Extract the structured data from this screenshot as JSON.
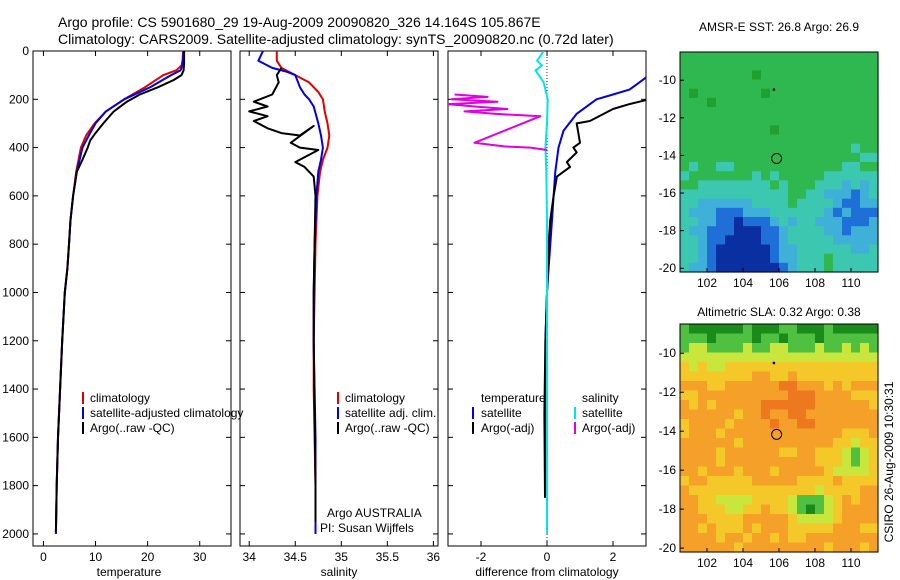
{
  "header": {
    "line1": "Argo profile: CS 5901680_29 19-Aug-2009 20090820_326 14.164S 105.867E",
    "line2": "Climatology: CARS2009. Satellite-adjusted climatology: synTS_20090820.nc (0.72d later)"
  },
  "side_label": "CSIRO 26-Aug-2009 10:30:31",
  "colors": {
    "red": "#e00000",
    "blue": "#0000e0",
    "black": "#000000",
    "cyan": "#00e5e5",
    "magenta": "#e000e0"
  },
  "chart_data": [
    {
      "id": "temperature",
      "type": "line",
      "xlabel": "temperature",
      "xlim": [
        -2,
        36
      ],
      "ylim": [
        0,
        2050
      ],
      "xticks": [
        0,
        10,
        20,
        30
      ],
      "yticks": [
        0,
        200,
        400,
        600,
        800,
        1000,
        1200,
        1400,
        1600,
        1800,
        2000
      ],
      "legend": [
        "climatology",
        "satellite-adjusted climatology",
        "Argo(..raw -QC)"
      ],
      "series": [
        {
          "name": "climatology",
          "color": "#e00000",
          "x": [
            26.8,
            26.7,
            26.5,
            25.5,
            23,
            19.5,
            15.5,
            12,
            9.8,
            8.2,
            7.2,
            6.3,
            5.7,
            5.2,
            4.9,
            4.6,
            4.1,
            3.6,
            3.2,
            2.8,
            2.55,
            2.4
          ],
          "y": [
            0,
            40,
            60,
            80,
            100,
            150,
            200,
            250,
            300,
            350,
            400,
            500,
            600,
            700,
            800,
            900,
            1000,
            1200,
            1400,
            1600,
            1800,
            2000
          ]
        },
        {
          "name": "satellite-adjusted climatology",
          "color": "#0000e0",
          "x": [
            26.9,
            26.8,
            26.7,
            26.3,
            24.5,
            20.5,
            15.5,
            12,
            10,
            8.7,
            7.5,
            6.4,
            5.7,
            5.2,
            4.9,
            4.6,
            4.1,
            3.6,
            3.2,
            2.8,
            2.55,
            2.4
          ],
          "y": [
            0,
            40,
            60,
            80,
            100,
            150,
            200,
            250,
            300,
            350,
            400,
            500,
            600,
            700,
            800,
            900,
            1000,
            1200,
            1400,
            1600,
            1800,
            2000
          ]
        },
        {
          "name": "Argo(..raw -QC)",
          "color": "#000000",
          "x": [
            27,
            27,
            26.9,
            26.5,
            25,
            22,
            18.5,
            16,
            13.5,
            11.5,
            10,
            9,
            8.5,
            7.5,
            6.4,
            5.7,
            5.2,
            4.9,
            4.6,
            4.1,
            3.6,
            3.2,
            2.8,
            2.55,
            2.4
          ],
          "y": [
            0,
            50,
            80,
            100,
            120,
            150,
            180,
            210,
            250,
            300,
            340,
            370,
            400,
            450,
            500,
            600,
            700,
            800,
            900,
            1000,
            1200,
            1400,
            1600,
            1800,
            1990
          ]
        }
      ]
    },
    {
      "id": "salinity",
      "type": "line",
      "xlabel": "salinity",
      "xlim": [
        33.9,
        36.05
      ],
      "ylim": [
        0,
        2050
      ],
      "xticks": [
        34,
        34.5,
        35,
        35.5,
        36
      ],
      "legend": [
        "climatology",
        "satellite adj. clim.",
        "Argo(..raw -QC)"
      ],
      "annotation": [
        "Argo AUSTRALIA",
        "PI: Susan Wijffels"
      ],
      "series": [
        {
          "name": "climatology",
          "color": "#e00000",
          "x": [
            34.3,
            34.3,
            34.35,
            34.5,
            34.65,
            34.75,
            34.8,
            34.82,
            34.85,
            34.87,
            34.85,
            34.8,
            34.77,
            34.74,
            34.72,
            34.71,
            34.7,
            34.7,
            34.71,
            34.72,
            34.72,
            34.72
          ],
          "y": [
            0,
            40,
            70,
            100,
            130,
            170,
            200,
            250,
            300,
            350,
            400,
            450,
            500,
            600,
            800,
            1000,
            1200,
            1400,
            1600,
            1800,
            1900,
            2000
          ]
        },
        {
          "name": "satellite adj. clim.",
          "color": "#0000e0",
          "x": [
            34.15,
            34.1,
            34.25,
            34.4,
            34.5,
            34.55,
            34.6,
            34.65,
            34.7,
            34.75,
            34.78,
            34.8,
            34.78,
            34.75,
            34.73,
            34.71,
            34.7,
            34.7,
            34.71,
            34.72,
            34.72,
            34.72
          ],
          "y": [
            0,
            40,
            70,
            85,
            100,
            150,
            180,
            200,
            230,
            300,
            350,
            400,
            450,
            500,
            600,
            800,
            1000,
            1200,
            1400,
            1600,
            1800,
            2000
          ]
        },
        {
          "name": "Argo(..raw -QC)",
          "color": "#000000",
          "x": [
            34.35,
            34.3,
            34.32,
            34.25,
            34.05,
            34.2,
            34.0,
            34.2,
            34.05,
            34.2,
            34.35,
            34.55,
            34.7,
            34.45,
            34.55,
            34.75,
            34.6,
            34.5,
            34.6,
            34.7,
            34.72,
            34.71,
            34.7,
            34.7,
            34.71,
            34.72,
            34.72
          ],
          "y": [
            70,
            100,
            130,
            180,
            210,
            230,
            250,
            270,
            290,
            320,
            340,
            350,
            310,
            380,
            400,
            410,
            440,
            460,
            480,
            520,
            600,
            800,
            1000,
            1200,
            1500,
            1800,
            1950
          ]
        }
      ]
    },
    {
      "id": "difference",
      "type": "line",
      "xlabel": "difference from climatology",
      "xlim": [
        -3,
        3
      ],
      "ylim": [
        0,
        2050
      ],
      "xticks": [
        -2,
        0,
        2
      ],
      "legend_groups": [
        {
          "title": "temperature",
          "entries": [
            "satellite",
            "Argo(-adj)"
          ]
        },
        {
          "title": "salinity",
          "entries": [
            "satellite",
            "Argo(-adj)"
          ]
        }
      ],
      "series": [
        {
          "name": "satellite",
          "group": "temperature",
          "color": "#0000e0",
          "x": [
            3.2,
            2.5,
            2.0,
            1.5,
            0.9,
            0.5,
            0.35,
            0.25,
            0.2,
            0.15,
            0.1,
            0.05,
            0,
            -0.05,
            -0.05,
            -0.05
          ],
          "y": [
            90,
            160,
            180,
            200,
            260,
            330,
            400,
            500,
            600,
            700,
            800,
            900,
            1000,
            1200,
            1500,
            1850
          ]
        },
        {
          "name": "Argo(-adj)",
          "group": "temperature",
          "color": "#000000",
          "x": [
            3.1,
            2.5,
            2.0,
            1.3,
            0.9,
            1.0,
            0.8,
            0.9,
            0.6,
            0.7,
            0.3,
            0.2,
            0.1,
            0.05,
            0,
            -0.05,
            -0.08,
            -0.06
          ],
          "y": [
            200,
            220,
            240,
            290,
            300,
            380,
            400,
            420,
            460,
            480,
            520,
            600,
            700,
            800,
            1000,
            1200,
            1500,
            1850
          ]
        },
        {
          "name": "satellite",
          "group": "salinity",
          "color": "#00e5e5",
          "x": [
            -0.1,
            -0.3,
            -0.15,
            -0.35,
            -0.1,
            0.02,
            0.0,
            -0.05,
            -0.02,
            0.0,
            0.0,
            0.0,
            0.0,
            0.0
          ],
          "y": [
            0,
            40,
            60,
            80,
            130,
            200,
            300,
            400,
            500,
            700,
            1000,
            1400,
            1800,
            2000
          ]
        },
        {
          "name": "Argo(-adj)",
          "group": "salinity",
          "color": "#e000e0",
          "x": [
            -2.8,
            -1.8,
            -2.9,
            -1.5,
            -3.0,
            -2.2,
            -1.2,
            -2.5,
            -1.6,
            -0.2,
            -2.2,
            -1.3,
            -0.5,
            0.0
          ],
          "y": [
            180,
            190,
            200,
            210,
            220,
            230,
            240,
            250,
            260,
            270,
            380,
            395,
            400,
            410
          ]
        }
      ]
    },
    {
      "id": "map-sst",
      "type": "heatmap",
      "title": "AMSR-E SST: 26.8 Argo: 26.9",
      "xlim": [
        100.5,
        111.5
      ],
      "ylim": [
        -20.2,
        -8.5
      ],
      "xticks": [
        102,
        104,
        106,
        108,
        110
      ],
      "yticks": [
        -10,
        -12,
        -14,
        -16,
        -18,
        -20
      ],
      "argo_position": [
        105.867,
        -14.164
      ],
      "palette": [
        "#0a2fa0",
        "#1e6fd8",
        "#3fb0d8",
        "#3cc8b0",
        "#2fb850",
        "#20a030"
      ]
    },
    {
      "id": "map-sla",
      "type": "heatmap",
      "title": "Altimetric SLA: 0.32 Argo: 0.38",
      "xlim": [
        100.5,
        111.5
      ],
      "ylim": [
        -20.2,
        -8.5
      ],
      "xticks": [
        102,
        104,
        106,
        108,
        110
      ],
      "yticks": [
        -10,
        -12,
        -14,
        -16,
        -18,
        -20
      ],
      "argo_position": [
        105.867,
        -14.164
      ],
      "palette": [
        "#1a8a1a",
        "#50c040",
        "#c8e63c",
        "#f5c82a",
        "#f5a028",
        "#ee7820"
      ]
    }
  ]
}
